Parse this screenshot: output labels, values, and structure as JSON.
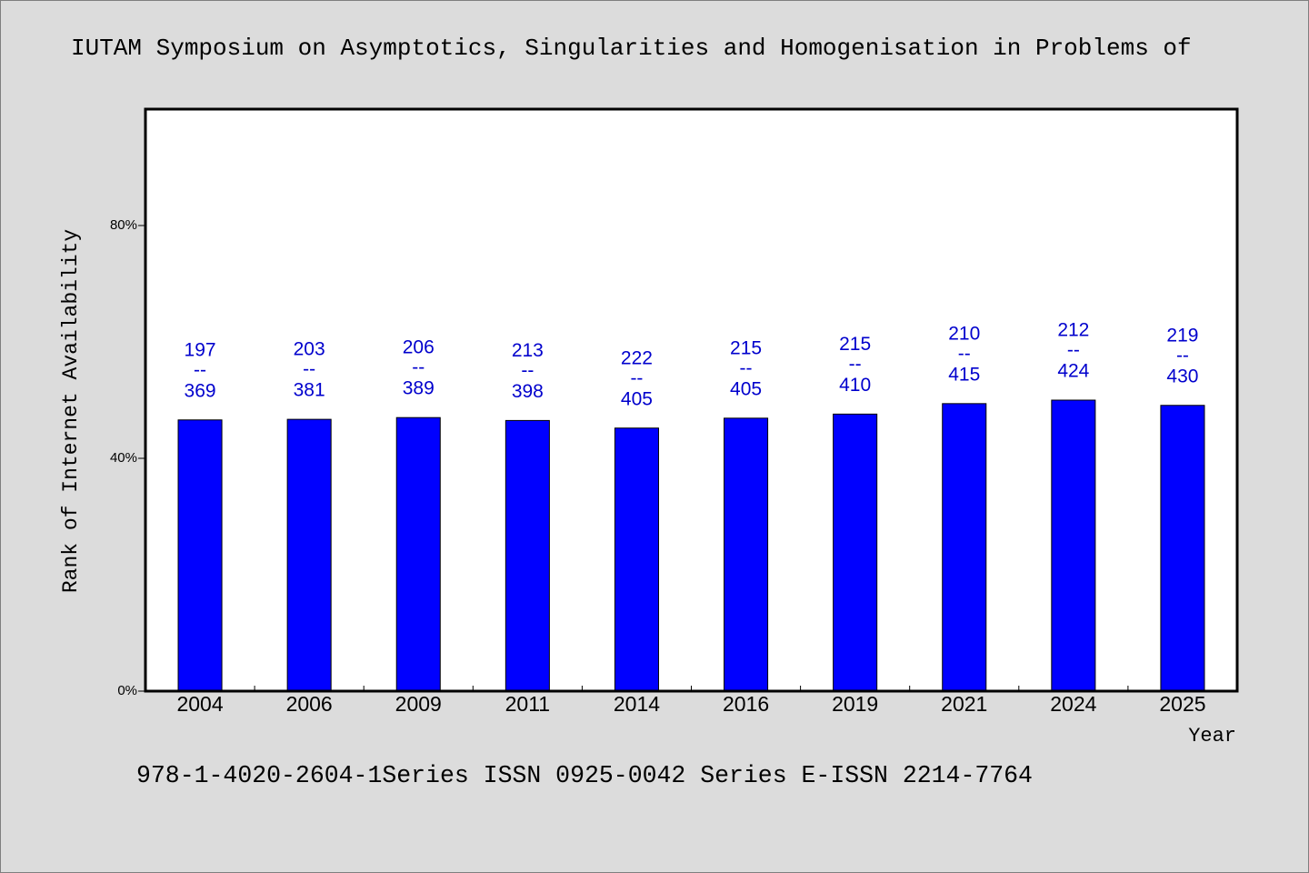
{
  "footer": "978-1-4020-2604-1Series ISSN 0925-0042 Series E-ISSN 2214-7764",
  "colors": {
    "background": "#dcdcdc",
    "plot_background": "#ffffff",
    "bar": "#0000ff",
    "bar_edge": "#000000",
    "data_label": "#0000cd",
    "text": "#000000"
  },
  "chart_data": {
    "type": "bar",
    "title": "IUTAM Symposium on Asymptotics, Singularities and Homogenisation in Problems of",
    "xlabel": "Year",
    "ylabel": "Rank of Internet Availability",
    "categories": [
      "2004",
      "2006",
      "2009",
      "2011",
      "2014",
      "2016",
      "2019",
      "2021",
      "2024",
      "2025"
    ],
    "values": [
      46.6,
      46.7,
      47.0,
      46.5,
      45.2,
      46.9,
      47.6,
      49.4,
      50.0,
      49.1
    ],
    "data_labels": {
      "ranks": [
        "197",
        "203",
        "206",
        "213",
        "222",
        "215",
        "215",
        "210",
        "212",
        "219"
      ],
      "separator": "--",
      "totals": [
        "369",
        "381",
        "389",
        "398",
        "405",
        "405",
        "410",
        "415",
        "424",
        "430"
      ]
    },
    "ylim": [
      0,
      100
    ],
    "yticks": [
      0,
      40,
      80
    ],
    "ytick_labels": [
      "0%",
      "40%",
      "80%"
    ],
    "grid": false,
    "legend": "none"
  }
}
